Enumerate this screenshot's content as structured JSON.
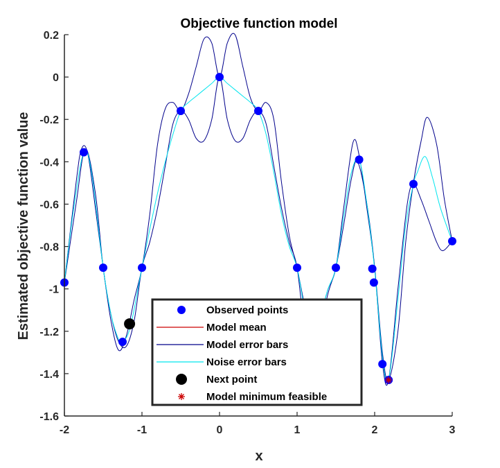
{
  "chart_data": {
    "type": "line",
    "title": "Objective function model",
    "xlabel": "x",
    "ylabel": "Estimated objective function value",
    "xlim": [
      -2,
      3
    ],
    "ylim": [
      -1.6,
      0.2
    ],
    "xticks": [
      -2,
      -1,
      0,
      1,
      2,
      3
    ],
    "xtick_labels": [
      "-2",
      "-1",
      "0",
      "1",
      "2",
      "3"
    ],
    "yticks": [
      0.2,
      0,
      -0.2,
      -0.4,
      -0.6,
      -0.8,
      -1,
      -1.2,
      -1.4,
      -1.6
    ],
    "ytick_labels": [
      "0.2",
      "0",
      "-0.2",
      "-0.4",
      "-0.6",
      "-0.8",
      "-1",
      "-1.2",
      "-1.4",
      "-1.6"
    ],
    "grid": false,
    "legend_position": "bottom-center",
    "legend": [
      {
        "label": "Observed points",
        "marker": "circle",
        "color": "#0000ff"
      },
      {
        "label": "Model mean",
        "marker": "line",
        "color": "#cc0000"
      },
      {
        "label": "Model error bars",
        "marker": "line",
        "color": "#00008b"
      },
      {
        "label": "Noise error bars",
        "marker": "line",
        "color": "#00e5ee"
      },
      {
        "label": "Next point",
        "marker": "circle",
        "color": "#000000"
      },
      {
        "label": "Model minimum feasible",
        "marker": "asterisk",
        "color": "#cc0000"
      }
    ],
    "observed_points": {
      "x": [
        -2.0,
        -1.75,
        -1.5,
        -1.25,
        -1.0,
        -0.5,
        0.0,
        0.5,
        1.0,
        1.5,
        1.8,
        1.97,
        1.99,
        2.1,
        2.18,
        2.5,
        3.0
      ],
      "y": [
        -0.97,
        -0.355,
        -0.9,
        -1.25,
        -0.9,
        -0.16,
        0.0,
        -0.16,
        -0.9,
        -0.9,
        -0.39,
        -0.905,
        -0.97,
        -1.355,
        -1.43,
        -0.505,
        -0.775
      ]
    },
    "next_point": {
      "x": -1.16,
      "y": -1.165
    },
    "model_minimum_feasible": {
      "x": 2.18,
      "y": -1.43
    },
    "series": [
      {
        "name": "Model error bars",
        "color": "#00008b",
        "x": [
          -2.0,
          -1.85,
          -1.78,
          -1.7,
          -1.6,
          -1.5,
          -1.4,
          -1.3,
          -1.2,
          -1.1,
          -1.0,
          -0.9,
          -0.8,
          -0.7,
          -0.6,
          -0.5,
          -0.4,
          -0.3,
          -0.2,
          -0.1,
          0.0,
          0.1,
          0.2,
          0.3,
          0.4,
          0.5,
          0.6,
          0.7,
          0.8,
          0.9,
          1.0,
          1.1,
          1.2,
          1.3,
          1.4,
          1.5,
          1.6,
          1.72,
          1.8,
          1.9,
          2.0,
          2.1,
          2.18,
          2.3,
          2.4,
          2.5,
          2.6,
          2.68,
          2.8,
          2.9,
          3.0
        ],
        "values": [
          -0.97,
          -0.5,
          -0.34,
          -0.36,
          -0.62,
          -0.9,
          -1.15,
          -1.29,
          -1.22,
          -1.05,
          -0.9,
          -0.65,
          -0.32,
          -0.15,
          -0.12,
          -0.16,
          -0.08,
          0.05,
          0.18,
          0.16,
          0.0,
          0.16,
          0.2,
          0.05,
          -0.1,
          -0.16,
          -0.12,
          -0.2,
          -0.5,
          -0.75,
          -0.9,
          -1.08,
          -1.18,
          -1.12,
          -1.0,
          -0.9,
          -0.62,
          -0.31,
          -0.37,
          -0.62,
          -0.9,
          -1.3,
          -1.43,
          -1.2,
          -0.78,
          -0.5,
          -0.3,
          -0.19,
          -0.32,
          -0.58,
          -0.775
        ]
      },
      {
        "name": "Model error bars",
        "color": "#00008b",
        "x": [
          -2.0,
          -1.85,
          -1.73,
          -1.6,
          -1.5,
          -1.4,
          -1.3,
          -1.2,
          -1.1,
          -1.0,
          -0.9,
          -0.8,
          -0.7,
          -0.6,
          -0.5,
          -0.4,
          -0.3,
          -0.2,
          -0.1,
          0.0,
          0.1,
          0.2,
          0.3,
          0.4,
          0.5,
          0.6,
          0.7,
          0.8,
          0.9,
          1.0,
          1.1,
          1.2,
          1.3,
          1.4,
          1.5,
          1.6,
          1.7,
          1.78,
          1.9,
          2.0,
          2.1,
          2.18,
          2.3,
          2.42,
          2.5,
          2.6,
          2.7,
          2.8,
          2.88,
          3.0
        ],
        "values": [
          -0.97,
          -0.6,
          -0.34,
          -0.55,
          -0.9,
          -1.12,
          -1.25,
          -1.27,
          -1.15,
          -0.9,
          -0.78,
          -0.62,
          -0.42,
          -0.22,
          -0.16,
          -0.2,
          -0.29,
          -0.3,
          -0.2,
          0.0,
          -0.2,
          -0.3,
          -0.29,
          -0.2,
          -0.16,
          -0.22,
          -0.42,
          -0.62,
          -0.78,
          -0.9,
          -1.2,
          -1.3,
          -1.18,
          -1.02,
          -0.9,
          -0.7,
          -0.48,
          -0.4,
          -0.6,
          -0.9,
          -1.35,
          -1.43,
          -1.0,
          -0.6,
          -0.505,
          -0.58,
          -0.68,
          -0.78,
          -0.82,
          -0.775
        ]
      },
      {
        "name": "Noise error bars",
        "color": "#00e5ee",
        "x": [
          -2.0,
          -1.88,
          -1.75,
          -1.65,
          -1.5,
          -1.4,
          -1.3,
          -1.25,
          -1.15,
          -1.0,
          -0.9,
          -0.8,
          -0.7,
          -0.6,
          -0.5,
          -0.4,
          -0.3,
          -0.2,
          -0.1,
          0.0,
          0.1,
          0.2,
          0.3,
          0.4,
          0.5,
          0.6,
          0.7,
          0.8,
          0.9,
          1.0,
          1.1,
          1.2,
          1.3,
          1.4,
          1.5,
          1.6,
          1.7,
          1.8,
          1.9,
          2.0,
          2.1,
          2.18,
          2.3,
          2.4,
          2.5,
          2.55,
          2.65,
          2.75,
          2.85,
          3.0
        ],
        "values": [
          -0.97,
          -0.62,
          -0.355,
          -0.45,
          -0.9,
          -1.12,
          -1.24,
          -1.25,
          -1.18,
          -0.9,
          -0.72,
          -0.55,
          -0.4,
          -0.27,
          -0.16,
          -0.12,
          -0.09,
          -0.06,
          -0.03,
          0.0,
          -0.03,
          -0.06,
          -0.09,
          -0.12,
          -0.16,
          -0.27,
          -0.45,
          -0.65,
          -0.8,
          -0.9,
          -1.1,
          -1.2,
          -1.12,
          -1.0,
          -0.9,
          -0.66,
          -0.45,
          -0.39,
          -0.6,
          -0.91,
          -1.32,
          -1.43,
          -1.05,
          -0.7,
          -0.505,
          -0.45,
          -0.375,
          -0.48,
          -0.62,
          -0.775
        ]
      }
    ]
  }
}
